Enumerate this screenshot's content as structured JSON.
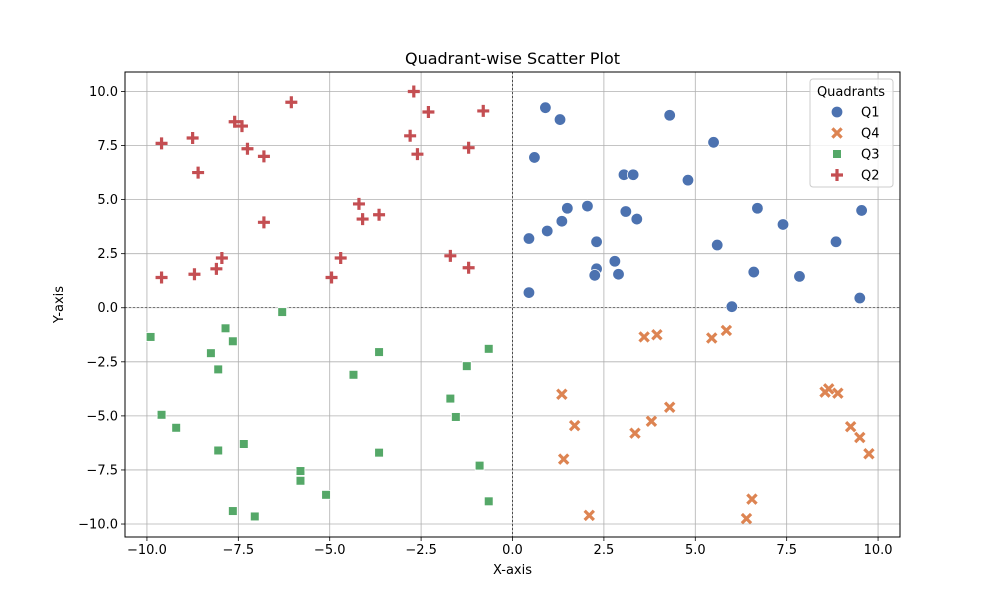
{
  "chart_data": {
    "type": "scatter",
    "title": "Quadrant-wise Scatter Plot",
    "xlabel": "X-axis",
    "ylabel": "Y-axis",
    "xlim": [
      -10.6,
      10.6
    ],
    "ylim": [
      -10.6,
      10.9
    ],
    "xticks": [
      -10.0,
      -7.5,
      -5.0,
      -2.5,
      0.0,
      2.5,
      5.0,
      7.5,
      10.0
    ],
    "xtick_labels": [
      "−10.0",
      "−7.5",
      "−5.0",
      "−2.5",
      "0.0",
      "2.5",
      "5.0",
      "7.5",
      "10.0"
    ],
    "yticks": [
      -10.0,
      -7.5,
      -5.0,
      -2.5,
      0.0,
      2.5,
      5.0,
      7.5,
      10.0
    ],
    "ytick_labels": [
      "−10.0",
      "−7.5",
      "−5.0",
      "−2.5",
      "0.0",
      "2.5",
      "5.0",
      "7.5",
      "10.0"
    ],
    "grid": true,
    "reference_lines": {
      "x": 0,
      "y": 0,
      "style": "dashed"
    },
    "legend": {
      "title": "Quadrants",
      "placement": "top-right"
    },
    "series": [
      {
        "name": "Q1",
        "marker": "circle",
        "color": "#4c72b0",
        "points": [
          [
            0.9,
            9.25
          ],
          [
            1.3,
            8.7
          ],
          [
            4.3,
            8.9
          ],
          [
            5.5,
            7.65
          ],
          [
            0.6,
            6.95
          ],
          [
            3.05,
            6.15
          ],
          [
            3.3,
            6.15
          ],
          [
            4.8,
            5.9
          ],
          [
            1.5,
            4.6
          ],
          [
            2.05,
            4.7
          ],
          [
            3.1,
            4.45
          ],
          [
            3.4,
            4.1
          ],
          [
            1.35,
            4.0
          ],
          [
            6.7,
            4.6
          ],
          [
            7.4,
            3.85
          ],
          [
            9.55,
            4.5
          ],
          [
            0.45,
            3.2
          ],
          [
            0.95,
            3.55
          ],
          [
            2.3,
            3.05
          ],
          [
            5.6,
            2.9
          ],
          [
            8.85,
            3.05
          ],
          [
            2.8,
            2.15
          ],
          [
            2.3,
            1.8
          ],
          [
            2.25,
            1.5
          ],
          [
            2.9,
            1.55
          ],
          [
            6.6,
            1.65
          ],
          [
            7.85,
            1.45
          ],
          [
            0.45,
            0.7
          ],
          [
            6.0,
            0.05
          ],
          [
            9.5,
            0.45
          ]
        ]
      },
      {
        "name": "Q4",
        "marker": "x",
        "color": "#dd8452",
        "points": [
          [
            3.6,
            -1.35
          ],
          [
            3.95,
            -1.25
          ],
          [
            5.45,
            -1.4
          ],
          [
            5.85,
            -1.05
          ],
          [
            1.35,
            -4.0
          ],
          [
            4.3,
            -4.6
          ],
          [
            1.7,
            -5.45
          ],
          [
            3.8,
            -5.25
          ],
          [
            3.35,
            -5.8
          ],
          [
            1.4,
            -7.0
          ],
          [
            8.55,
            -3.9
          ],
          [
            8.65,
            -3.75
          ],
          [
            8.9,
            -3.95
          ],
          [
            9.25,
            -5.5
          ],
          [
            9.5,
            -6.0
          ],
          [
            9.75,
            -6.75
          ],
          [
            2.1,
            -9.6
          ],
          [
            6.55,
            -8.85
          ],
          [
            6.4,
            -9.75
          ]
        ]
      },
      {
        "name": "Q3",
        "marker": "square",
        "color": "#55a868",
        "points": [
          [
            -9.9,
            -1.35
          ],
          [
            -7.85,
            -0.95
          ],
          [
            -7.65,
            -1.55
          ],
          [
            -6.3,
            -0.2
          ],
          [
            -8.25,
            -2.1
          ],
          [
            -8.05,
            -2.85
          ],
          [
            -3.65,
            -2.05
          ],
          [
            -0.65,
            -1.9
          ],
          [
            -1.25,
            -2.7
          ],
          [
            -4.35,
            -3.1
          ],
          [
            -1.7,
            -4.2
          ],
          [
            -1.55,
            -5.05
          ],
          [
            -9.6,
            -4.95
          ],
          [
            -9.2,
            -5.55
          ],
          [
            -8.05,
            -6.6
          ],
          [
            -7.35,
            -6.3
          ],
          [
            -3.65,
            -6.7
          ],
          [
            -0.9,
            -7.3
          ],
          [
            -5.8,
            -7.55
          ],
          [
            -5.8,
            -8.0
          ],
          [
            -5.1,
            -8.65
          ],
          [
            -0.65,
            -8.95
          ],
          [
            -7.65,
            -9.4
          ],
          [
            -7.05,
            -9.65
          ]
        ]
      },
      {
        "name": "Q2",
        "marker": "plus",
        "color": "#c44e52",
        "points": [
          [
            -2.7,
            10.0
          ],
          [
            -6.05,
            9.5
          ],
          [
            -2.3,
            9.05
          ],
          [
            -0.8,
            9.1
          ],
          [
            -7.6,
            8.6
          ],
          [
            -7.4,
            8.4
          ],
          [
            -8.75,
            7.85
          ],
          [
            -9.6,
            7.6
          ],
          [
            -2.8,
            7.95
          ],
          [
            -1.2,
            7.4
          ],
          [
            -7.25,
            7.35
          ],
          [
            -6.8,
            7.0
          ],
          [
            -2.6,
            7.1
          ],
          [
            -8.6,
            6.25
          ],
          [
            -4.2,
            4.8
          ],
          [
            -3.65,
            4.3
          ],
          [
            -4.1,
            4.1
          ],
          [
            -6.8,
            3.95
          ],
          [
            -7.95,
            2.3
          ],
          [
            -4.7,
            2.3
          ],
          [
            -1.7,
            2.4
          ],
          [
            -8.1,
            1.8
          ],
          [
            -1.2,
            1.85
          ],
          [
            -8.7,
            1.55
          ],
          [
            -9.6,
            1.4
          ],
          [
            -4.95,
            1.4
          ]
        ]
      }
    ]
  }
}
